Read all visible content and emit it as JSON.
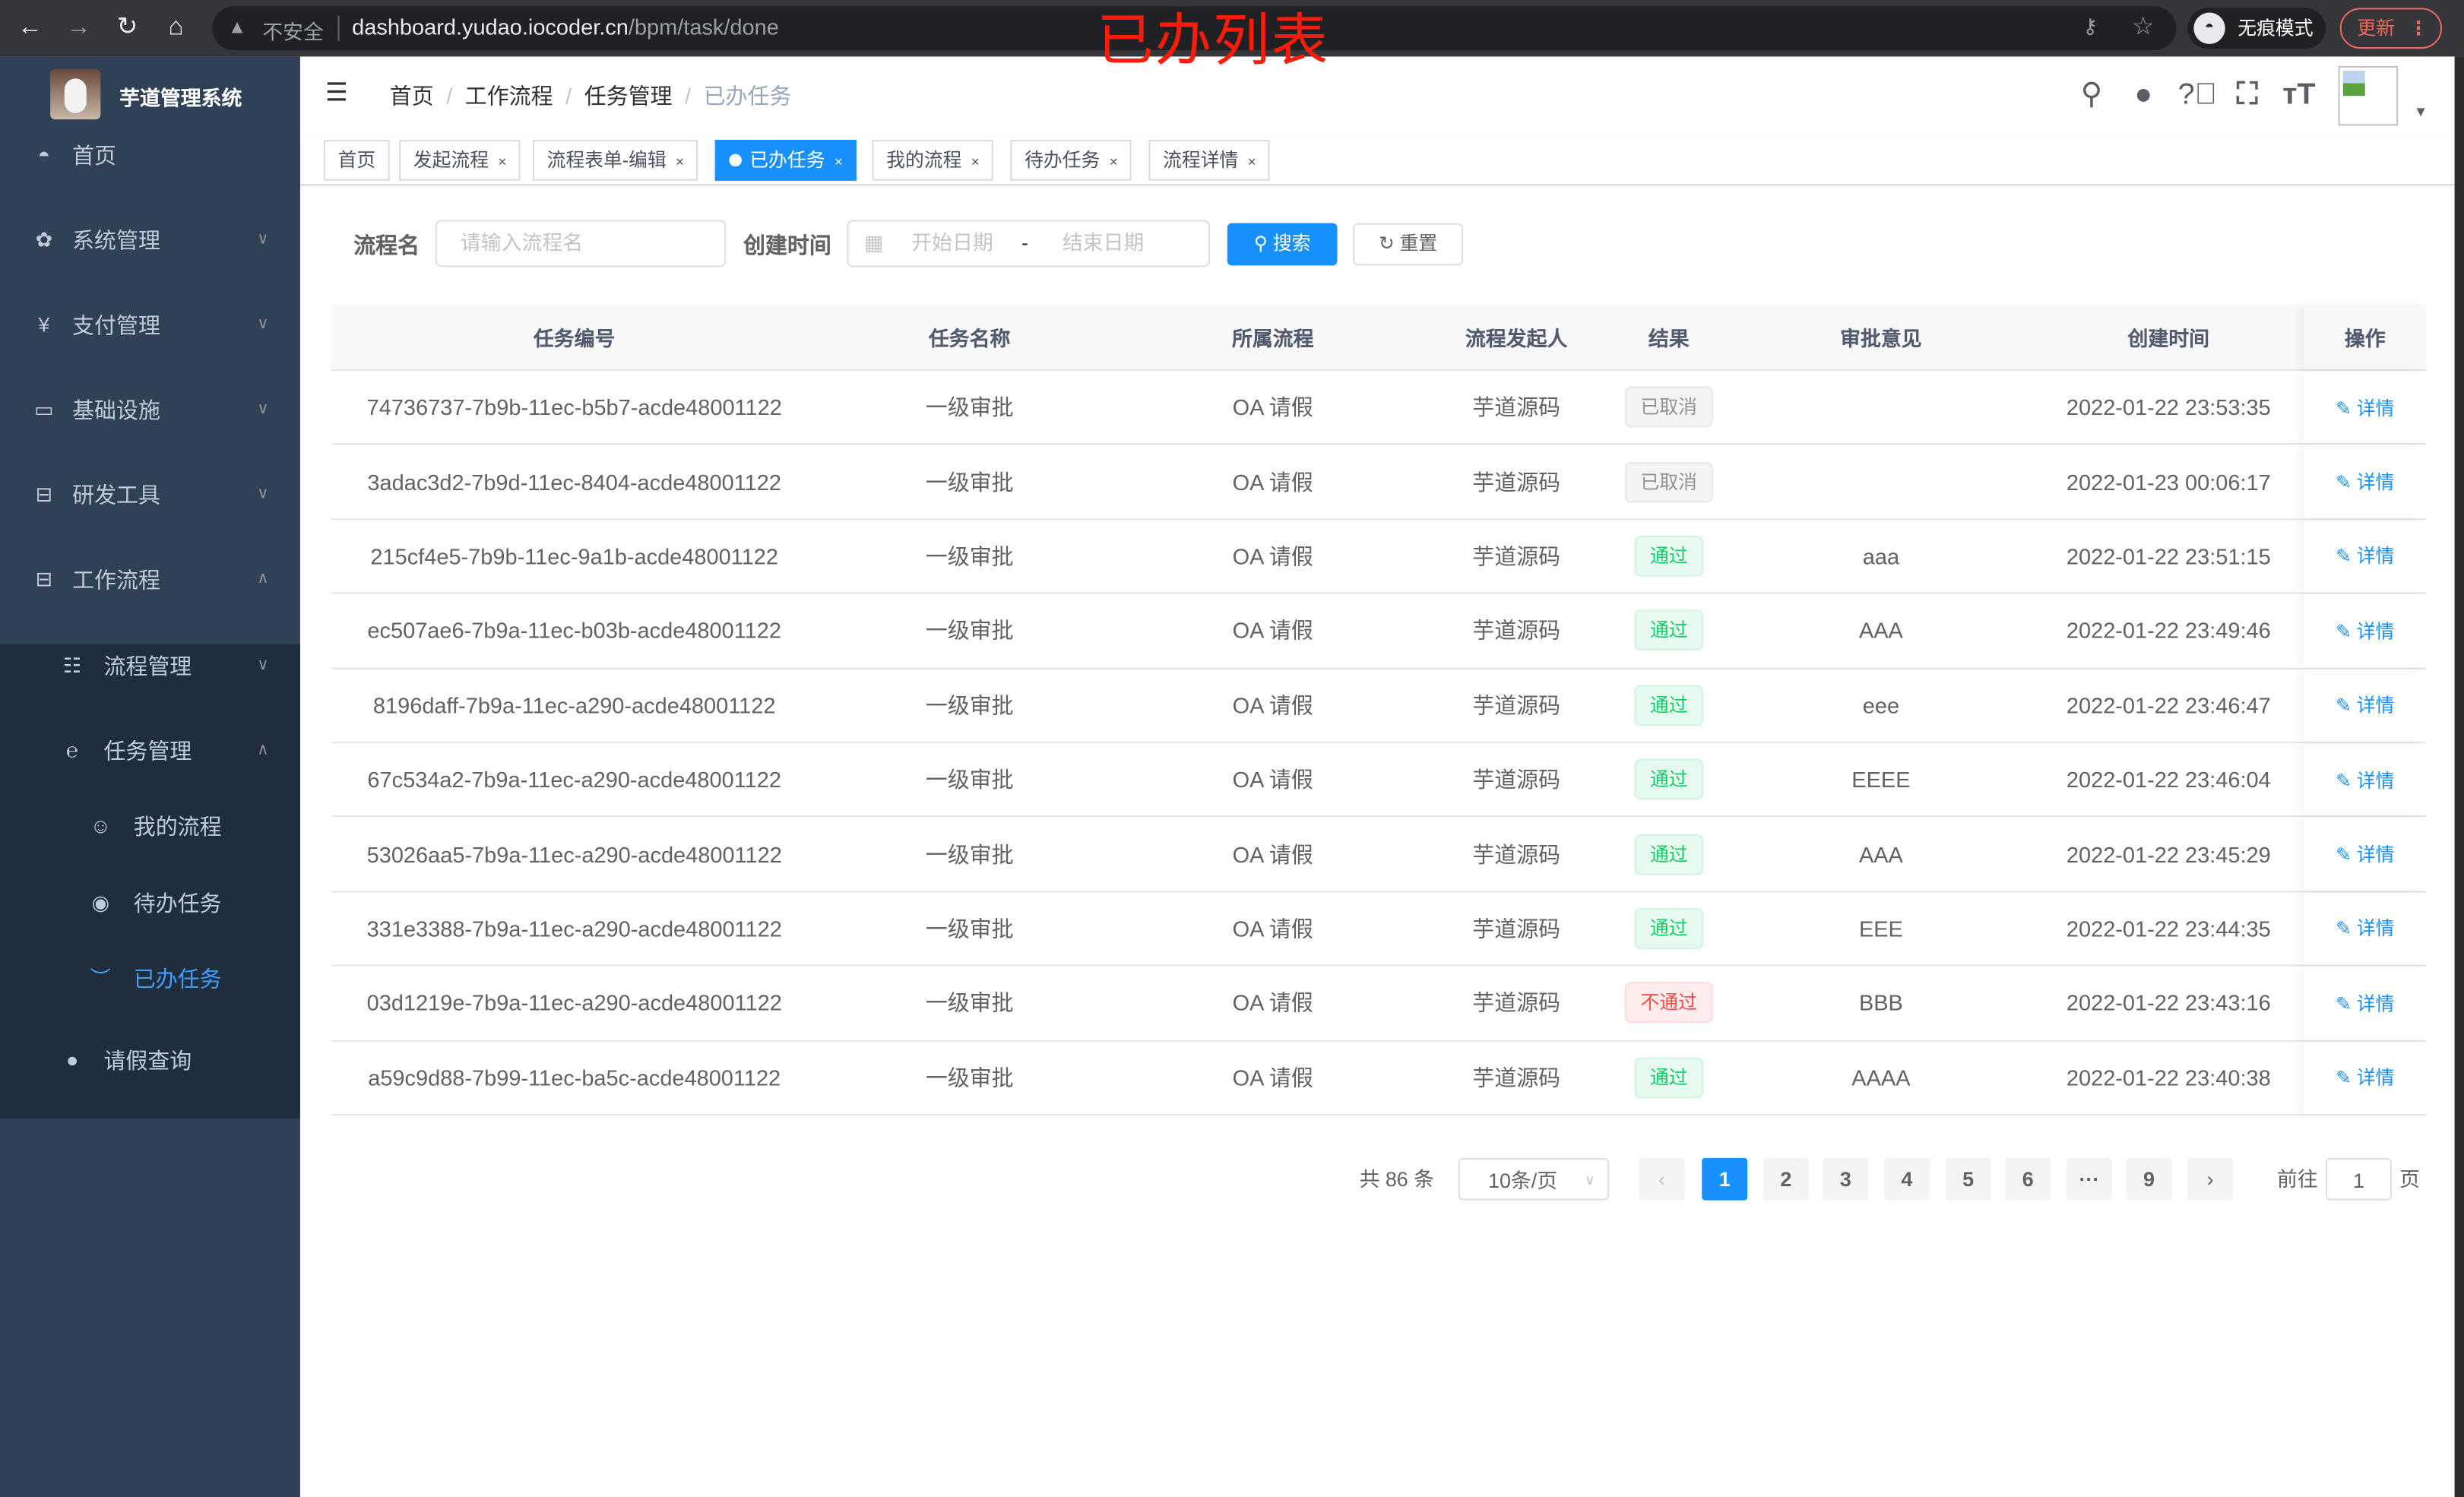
{
  "browser": {
    "insecure_label": "不安全",
    "url_host": "dashboard.yudao.iocoder.cn",
    "url_path": "/bpm/task/done",
    "incognito_label": "无痕模式",
    "update_label": "更新"
  },
  "overlay_title": "已办列表",
  "sidebar": {
    "title": "芋道管理系统",
    "items": [
      {
        "label": "首页",
        "icon": "dashboard-icon"
      },
      {
        "label": "系统管理",
        "icon": "gear-icon"
      },
      {
        "label": "支付管理",
        "icon": "yen-icon"
      },
      {
        "label": "基础设施",
        "icon": "monitor-icon"
      },
      {
        "label": "研发工具",
        "icon": "toolbox-icon"
      },
      {
        "label": "工作流程",
        "icon": "toolbox-icon"
      },
      {
        "label": "流程管理",
        "icon": "list-icon"
      },
      {
        "label": "任务管理",
        "icon": "task-icon"
      },
      {
        "label": "我的流程",
        "icon": "face-icon"
      },
      {
        "label": "待办任务",
        "icon": "eye-icon"
      },
      {
        "label": "已办任务",
        "icon": "eye-closed-icon"
      },
      {
        "label": "请假查询",
        "icon": "user-icon"
      }
    ]
  },
  "breadcrumb": [
    "首页",
    "工作流程",
    "任务管理",
    "已办任务"
  ],
  "tags": [
    {
      "label": "首页",
      "active": false
    },
    {
      "label": "发起流程",
      "active": false
    },
    {
      "label": "流程表单-编辑",
      "active": false
    },
    {
      "label": "已办任务",
      "active": true
    },
    {
      "label": "我的流程",
      "active": false
    },
    {
      "label": "待办任务",
      "active": false
    },
    {
      "label": "流程详情",
      "active": false
    }
  ],
  "search": {
    "name_label": "流程名",
    "name_placeholder": "请输入流程名",
    "time_label": "创建时间",
    "start_placeholder": "开始日期",
    "range_sep": "-",
    "end_placeholder": "结束日期",
    "search_button": "搜索",
    "reset_button": "重置"
  },
  "table": {
    "columns": [
      "任务编号",
      "任务名称",
      "所属流程",
      "流程发起人",
      "结果",
      "审批意见",
      "创建时间",
      "操作"
    ],
    "action_label": "详情",
    "rows": [
      {
        "id": "74736737-7b9b-11ec-b5b7-acde48001122",
        "name": "一级审批",
        "process": "OA 请假",
        "starter": "芋道源码",
        "result": "已取消",
        "status": "cancel",
        "comment": "",
        "time": "2022-01-22 23:53:35"
      },
      {
        "id": "3adac3d2-7b9d-11ec-8404-acde48001122",
        "name": "一级审批",
        "process": "OA 请假",
        "starter": "芋道源码",
        "result": "已取消",
        "status": "cancel",
        "comment": "",
        "time": "2022-01-23 00:06:17"
      },
      {
        "id": "215cf4e5-7b9b-11ec-9a1b-acde48001122",
        "name": "一级审批",
        "process": "OA 请假",
        "starter": "芋道源码",
        "result": "通过",
        "status": "pass",
        "comment": "aaa",
        "time": "2022-01-22 23:51:15"
      },
      {
        "id": "ec507ae6-7b9a-11ec-b03b-acde48001122",
        "name": "一级审批",
        "process": "OA 请假",
        "starter": "芋道源码",
        "result": "通过",
        "status": "pass",
        "comment": "AAA",
        "time": "2022-01-22 23:49:46"
      },
      {
        "id": "8196daff-7b9a-11ec-a290-acde48001122",
        "name": "一级审批",
        "process": "OA 请假",
        "starter": "芋道源码",
        "result": "通过",
        "status": "pass",
        "comment": "eee",
        "time": "2022-01-22 23:46:47"
      },
      {
        "id": "67c534a2-7b9a-11ec-a290-acde48001122",
        "name": "一级审批",
        "process": "OA 请假",
        "starter": "芋道源码",
        "result": "通过",
        "status": "pass",
        "comment": "EEEE",
        "time": "2022-01-22 23:46:04"
      },
      {
        "id": "53026aa5-7b9a-11ec-a290-acde48001122",
        "name": "一级审批",
        "process": "OA 请假",
        "starter": "芋道源码",
        "result": "通过",
        "status": "pass",
        "comment": "AAA",
        "time": "2022-01-22 23:45:29"
      },
      {
        "id": "331e3388-7b9a-11ec-a290-acde48001122",
        "name": "一级审批",
        "process": "OA 请假",
        "starter": "芋道源码",
        "result": "通过",
        "status": "pass",
        "comment": "EEE",
        "time": "2022-01-22 23:44:35"
      },
      {
        "id": "03d1219e-7b9a-11ec-a290-acde48001122",
        "name": "一级审批",
        "process": "OA 请假",
        "starter": "芋道源码",
        "result": "不通过",
        "status": "reject",
        "comment": "BBB",
        "time": "2022-01-22 23:43:16"
      },
      {
        "id": "a59c9d88-7b99-11ec-ba5c-acde48001122",
        "name": "一级审批",
        "process": "OA 请假",
        "starter": "芋道源码",
        "result": "通过",
        "status": "pass",
        "comment": "AAAA",
        "time": "2022-01-22 23:40:38"
      }
    ]
  },
  "status_colors": {
    "cancel": {
      "bg": "#f4f4f5",
      "border": "#e9e9eb",
      "text": "#909399"
    },
    "pass": {
      "bg": "#e7faf0",
      "border": "#d0f5e0",
      "text": "#13ce66"
    },
    "reject": {
      "bg": "#ffeded",
      "border": "#ffdbdb",
      "text": "#ff4949"
    }
  },
  "pagination": {
    "total_label": "共 86 条",
    "page_size": "10条/页",
    "pages": [
      "1",
      "2",
      "3",
      "4",
      "5",
      "6",
      "···",
      "9"
    ],
    "current": "1",
    "goto_label": "前往",
    "goto_value": "1",
    "goto_suffix": "页"
  },
  "accent_color": "#1890ff"
}
